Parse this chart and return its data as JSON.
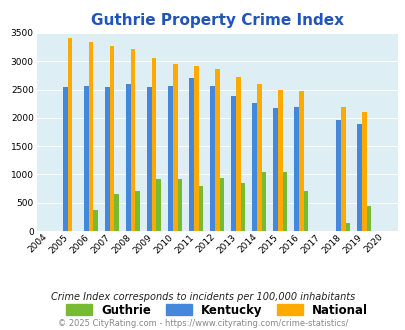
{
  "title": "Guthrie Property Crime Index",
  "years": [
    2004,
    2005,
    2006,
    2007,
    2008,
    2009,
    2010,
    2011,
    2012,
    2013,
    2014,
    2015,
    2016,
    2017,
    2018,
    2019,
    2020
  ],
  "guthrie": [
    0,
    0,
    370,
    650,
    700,
    920,
    920,
    790,
    940,
    850,
    1040,
    1050,
    700,
    0,
    150,
    450,
    0
  ],
  "kentucky": [
    0,
    2540,
    2560,
    2540,
    2600,
    2540,
    2560,
    2700,
    2560,
    2380,
    2260,
    2180,
    2190,
    0,
    1960,
    1900,
    0
  ],
  "national": [
    0,
    3420,
    3340,
    3270,
    3220,
    3050,
    2960,
    2910,
    2860,
    2730,
    2600,
    2500,
    2470,
    0,
    2200,
    2110,
    0
  ],
  "guthrie_color": "#77bb33",
  "kentucky_color": "#4488dd",
  "national_color": "#ffaa00",
  "plot_bg_color": "#ddeef5",
  "ylim": [
    0,
    3500
  ],
  "yticks": [
    0,
    500,
    1000,
    1500,
    2000,
    2500,
    3000,
    3500
  ],
  "subtitle": "Crime Index corresponds to incidents per 100,000 inhabitants",
  "footer": "© 2025 CityRating.com - https://www.cityrating.com/crime-statistics/",
  "legend_labels": [
    "Guthrie",
    "Kentucky",
    "National"
  ],
  "bar_width": 0.22,
  "title_color": "#2255bb",
  "subtitle_color": "#222222",
  "footer_color": "#888888"
}
